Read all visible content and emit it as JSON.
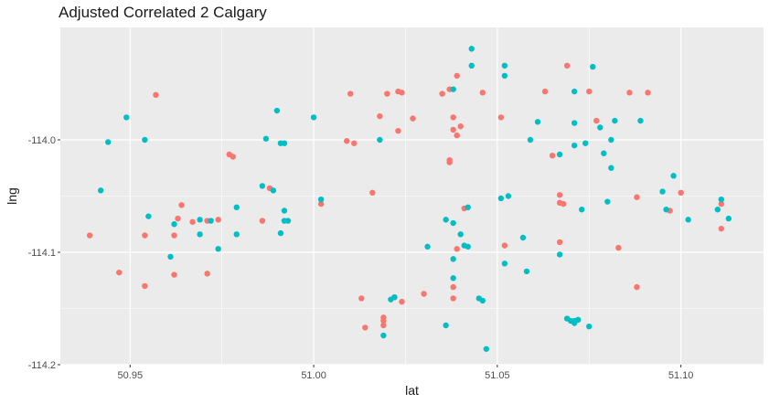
{
  "chart_data": {
    "type": "scatter",
    "title": "Adjusted Correlated 2 Calgary",
    "xlabel": "lat",
    "ylabel": "lng",
    "xlim": [
      50.931,
      51.1225
    ],
    "ylim": [
      -114.2,
      -113.9
    ],
    "x_ticks": [
      50.95,
      51.0,
      51.05,
      51.1
    ],
    "x_tick_labels": [
      "50.95",
      "51.00",
      "51.05",
      "51.10"
    ],
    "y_ticks": [
      -114.0,
      -114.1,
      -114.2
    ],
    "y_tick_labels": [
      "-114.0",
      "-114.1",
      "-114.2"
    ],
    "grid": true,
    "legend": "none",
    "colors": {
      "panel": "#ebebeb",
      "grid": "#ffffff",
      "series_a": "#F8766D",
      "series_b": "#00BFC4"
    },
    "series": [
      {
        "color": "#F8766D",
        "points": [
          [
            50.939,
            -114.085
          ],
          [
            50.947,
            -114.118
          ],
          [
            50.954,
            -114.13
          ],
          [
            50.954,
            -114.085
          ],
          [
            50.957,
            -113.96
          ],
          [
            50.962,
            -114.085
          ],
          [
            50.962,
            -114.12
          ],
          [
            50.963,
            -114.07
          ],
          [
            50.964,
            -114.058
          ],
          [
            50.967,
            -114.073
          ],
          [
            50.971,
            -114.072
          ],
          [
            50.971,
            -114.119
          ],
          [
            50.974,
            -114.071
          ],
          [
            50.977,
            -114.013
          ],
          [
            50.978,
            -114.015
          ],
          [
            50.986,
            -114.072
          ],
          [
            50.988,
            -114.043
          ],
          [
            51.002,
            -114.057
          ],
          [
            51.009,
            -114.001
          ],
          [
            51.01,
            -113.959
          ],
          [
            51.011,
            -114.003
          ],
          [
            51.013,
            -114.141
          ],
          [
            51.014,
            -114.167
          ],
          [
            51.016,
            -114.047
          ],
          [
            51.018,
            -113.979
          ],
          [
            51.019,
            -114.161
          ],
          [
            51.019,
            -114.165
          ],
          [
            51.019,
            -114.158
          ],
          [
            51.02,
            -113.959
          ],
          [
            51.022,
            -114.14
          ],
          [
            51.023,
            -113.957
          ],
          [
            51.023,
            -113.992
          ],
          [
            51.024,
            -113.958
          ],
          [
            51.024,
            -114.144
          ],
          [
            51.027,
            -113.981
          ],
          [
            51.03,
            -114.137
          ],
          [
            51.035,
            -113.959
          ],
          [
            51.037,
            -114.018
          ],
          [
            51.037,
            -114.02
          ],
          [
            51.037,
            -113.955
          ],
          [
            51.038,
            -113.991
          ],
          [
            51.038,
            -113.98
          ],
          [
            51.038,
            -114.131
          ],
          [
            51.038,
            -114.141
          ],
          [
            51.039,
            -113.996
          ],
          [
            51.039,
            -114.097
          ],
          [
            51.039,
            -113.943
          ],
          [
            51.04,
            -113.988
          ],
          [
            51.041,
            -114.061
          ],
          [
            51.046,
            -113.958
          ],
          [
            51.051,
            -113.98
          ],
          [
            51.052,
            -114.094
          ],
          [
            51.063,
            -113.957
          ],
          [
            51.065,
            -114.014
          ],
          [
            51.067,
            -114.049
          ],
          [
            51.067,
            -114.056
          ],
          [
            51.067,
            -114.091
          ],
          [
            51.068,
            -114.057
          ],
          [
            51.069,
            -113.934
          ],
          [
            51.075,
            -113.957
          ],
          [
            51.077,
            -113.983
          ],
          [
            51.083,
            -114.096
          ],
          [
            51.086,
            -113.958
          ],
          [
            51.088,
            -114.051
          ],
          [
            51.088,
            -114.131
          ],
          [
            51.091,
            -113.958
          ],
          [
            51.097,
            -114.063
          ],
          [
            51.1,
            -114.047
          ],
          [
            51.111,
            -114.079
          ],
          [
            51.111,
            -114.057
          ]
        ]
      },
      {
        "color": "#00BFC4",
        "points": [
          [
            50.942,
            -114.045
          ],
          [
            50.944,
            -114.002
          ],
          [
            50.949,
            -113.98
          ],
          [
            50.954,
            -114.0
          ],
          [
            50.955,
            -114.068
          ],
          [
            50.961,
            -114.104
          ],
          [
            50.962,
            -114.075
          ],
          [
            50.969,
            -114.071
          ],
          [
            50.969,
            -114.084
          ],
          [
            50.972,
            -114.072
          ],
          [
            50.974,
            -114.097
          ],
          [
            50.979,
            -114.06
          ],
          [
            50.979,
            -114.084
          ],
          [
            50.986,
            -114.041
          ],
          [
            50.987,
            -113.999
          ],
          [
            50.989,
            -114.045
          ],
          [
            50.99,
            -113.974
          ],
          [
            50.991,
            -114.003
          ],
          [
            50.991,
            -114.083
          ],
          [
            50.992,
            -114.063
          ],
          [
            50.992,
            -114.072
          ],
          [
            50.992,
            -114.003
          ],
          [
            50.993,
            -114.072
          ],
          [
            51.0,
            -113.98
          ],
          [
            51.002,
            -114.053
          ],
          [
            51.018,
            -114.0
          ],
          [
            51.019,
            -114.174
          ],
          [
            51.021,
            -114.142
          ],
          [
            51.022,
            -114.14
          ],
          [
            51.031,
            -114.095
          ],
          [
            51.036,
            -114.071
          ],
          [
            51.036,
            -114.165
          ],
          [
            51.038,
            -114.074
          ],
          [
            51.038,
            -114.106
          ],
          [
            51.038,
            -114.123
          ],
          [
            51.038,
            -113.955
          ],
          [
            51.04,
            -114.084
          ],
          [
            51.041,
            -114.094
          ],
          [
            51.042,
            -114.095
          ],
          [
            51.042,
            -114.06
          ],
          [
            51.043,
            -113.919
          ],
          [
            51.043,
            -113.934
          ],
          [
            51.045,
            -114.141
          ],
          [
            51.046,
            -114.143
          ],
          [
            51.047,
            -114.186
          ],
          [
            51.051,
            -114.052
          ],
          [
            51.052,
            -114.11
          ],
          [
            51.052,
            -113.934
          ],
          [
            51.052,
            -113.943
          ],
          [
            51.053,
            -114.05
          ],
          [
            51.057,
            -114.087
          ],
          [
            51.058,
            -114.117
          ],
          [
            51.059,
            -114.0
          ],
          [
            51.061,
            -113.984
          ],
          [
            51.067,
            -114.013
          ],
          [
            51.067,
            -114.102
          ],
          [
            51.069,
            -114.159
          ],
          [
            51.07,
            -114.161
          ],
          [
            51.071,
            -114.161
          ],
          [
            51.071,
            -114.163
          ],
          [
            51.071,
            -113.957
          ],
          [
            51.071,
            -114.005
          ],
          [
            51.071,
            -113.985
          ],
          [
            51.072,
            -114.16
          ],
          [
            51.073,
            -114.062
          ],
          [
            51.074,
            -114.003
          ],
          [
            51.075,
            -114.166
          ],
          [
            51.076,
            -113.935
          ],
          [
            51.078,
            -113.989
          ],
          [
            51.079,
            -114.012
          ],
          [
            51.08,
            -114.055
          ],
          [
            51.081,
            -114.0
          ],
          [
            51.081,
            -114.025
          ],
          [
            51.082,
            -113.983
          ],
          [
            51.089,
            -113.983
          ],
          [
            51.095,
            -114.046
          ],
          [
            51.096,
            -114.062
          ],
          [
            51.098,
            -114.032
          ],
          [
            51.102,
            -114.071
          ],
          [
            51.11,
            -114.062
          ],
          [
            51.111,
            -114.053
          ],
          [
            51.113,
            -114.07
          ]
        ]
      }
    ]
  }
}
